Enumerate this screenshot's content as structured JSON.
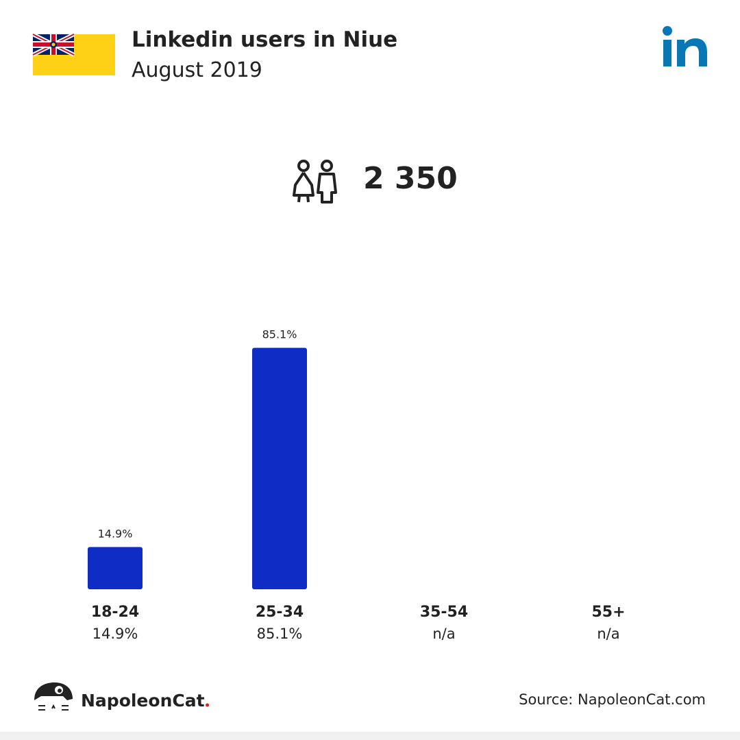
{
  "chart_data": {
    "type": "bar",
    "title": "Linkedin users in Niue",
    "subtitle": "August 2019",
    "total": {
      "value": 2350,
      "label": "2 350"
    },
    "categories": [
      "18-24",
      "25-34",
      "35-54",
      "55+"
    ],
    "values": [
      14.9,
      85.1,
      null,
      null
    ],
    "value_labels": [
      "14.9%",
      "85.1%",
      "n/a",
      "n/a"
    ],
    "color": "#0f2cc4",
    "ylim": [
      0,
      100
    ],
    "brand": "NapoleonCat",
    "source": "Source: NapoleonCat.com"
  }
}
